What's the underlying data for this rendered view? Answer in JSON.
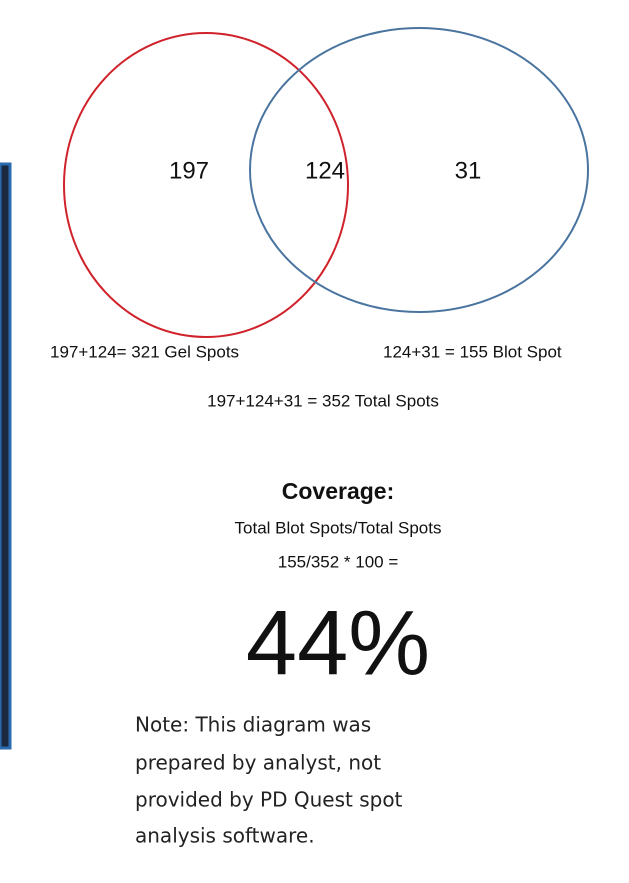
{
  "venn": {
    "left_only": "197",
    "both": "124",
    "right_only": "31"
  },
  "equations": {
    "gel": "197+124= 321 Gel Spots",
    "blot": "124+31 = 155 Blot Spot",
    "total": "197+124+31 = 352 Total Spots"
  },
  "coverage": {
    "heading": "Coverage:",
    "formula": "Total Blot Spots/Total Spots",
    "calc": "155/352 * 100 =",
    "result": "44%"
  },
  "note": [
    "Note: This diagram was",
    "prepared by analyst, not",
    "provided by PD Quest spot",
    "analysis software."
  ]
}
